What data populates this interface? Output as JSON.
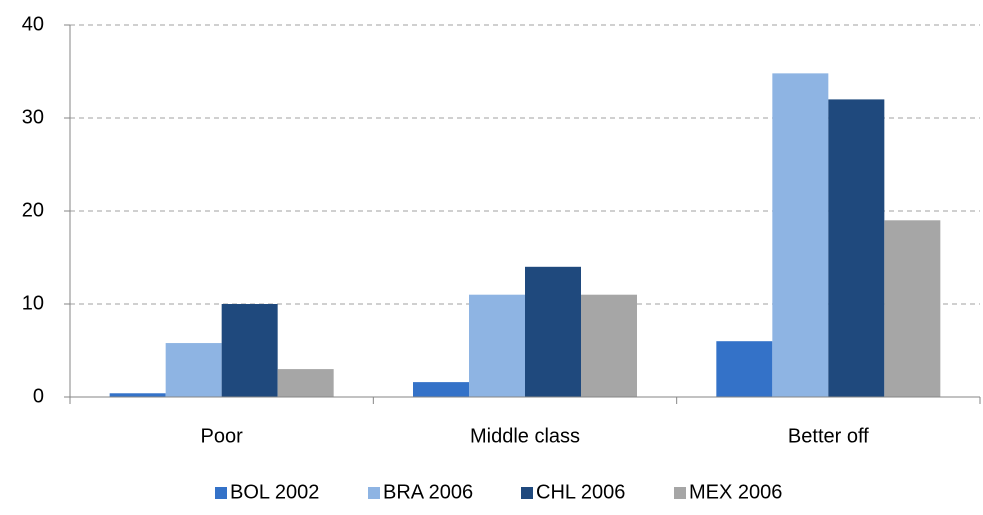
{
  "chart_data": {
    "type": "bar",
    "categories": [
      "Poor",
      "Middle class",
      "Better off"
    ],
    "series": [
      {
        "name": "BOL 2002",
        "color": "#3472c8",
        "values": [
          0.4,
          1.6,
          6
        ]
      },
      {
        "name": "BRA 2006",
        "color": "#8eb4e3",
        "values": [
          5.8,
          11,
          34.8
        ]
      },
      {
        "name": "CHL 2006",
        "color": "#1f497d",
        "values": [
          10,
          14,
          32
        ]
      },
      {
        "name": "MEX 2006",
        "color": "#a6a6a6",
        "values": [
          3,
          11,
          19
        ]
      }
    ],
    "ylim": [
      0,
      40
    ],
    "yticks": [
      0,
      10,
      20,
      30,
      40
    ],
    "grid": true,
    "legend": "bottom"
  }
}
